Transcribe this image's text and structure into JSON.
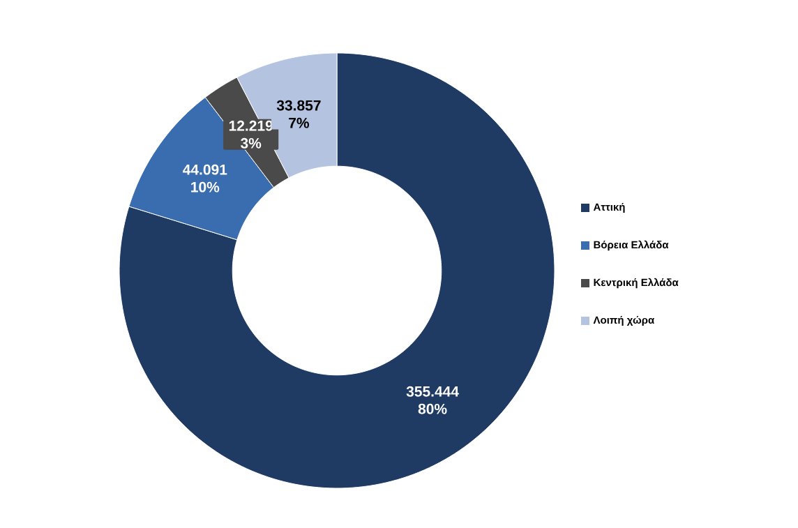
{
  "chart_data": {
    "type": "donut",
    "categories": [
      "Αττική",
      "Βόρεια Ελλάδα",
      "Κεντρική Ελλάδα",
      "Λοιπή χώρα"
    ],
    "values": [
      355444,
      44091,
      12219,
      33857
    ],
    "colors": [
      "#1f3b63",
      "#3a6db0",
      "#4a4a4a",
      "#b4c3e0"
    ],
    "value_labels": [
      "355.444 80%",
      "44.091 10%",
      "12.219 3%",
      "33.857 7%"
    ],
    "legend": "right"
  }
}
